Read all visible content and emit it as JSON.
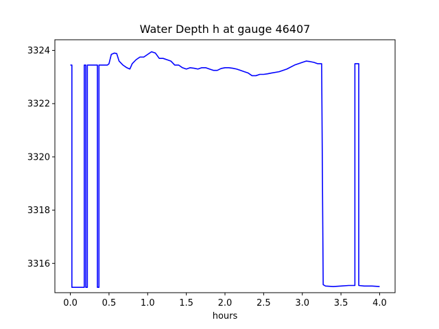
{
  "chart_data": {
    "type": "line",
    "title": "Water Depth h at gauge 46407",
    "xlabel": "hours",
    "ylabel": "",
    "xlim": [
      -0.2,
      4.2
    ],
    "ylim": [
      3314.9,
      3324.4
    ],
    "xticks": [
      0.0,
      0.5,
      1.0,
      1.5,
      2.0,
      2.5,
      3.0,
      3.5,
      4.0
    ],
    "xtick_labels": [
      "0.0",
      "0.5",
      "1.0",
      "1.5",
      "2.0",
      "2.5",
      "3.0",
      "3.5",
      "4.0"
    ],
    "yticks": [
      3316,
      3318,
      3320,
      3322,
      3324
    ],
    "ytick_labels": [
      "3316",
      "3318",
      "3320",
      "3322",
      "3324"
    ],
    "grid": false,
    "series": [
      {
        "color": "#0000ff",
        "x": [
          0.0,
          0.02,
          0.02,
          0.18,
          0.18,
          0.2,
          0.2,
          0.22,
          0.22,
          0.35,
          0.35,
          0.37,
          0.37,
          0.48,
          0.5,
          0.53,
          0.57,
          0.6,
          0.63,
          0.68,
          0.73,
          0.77,
          0.8,
          0.85,
          0.9,
          0.95,
          1.0,
          1.05,
          1.1,
          1.15,
          1.2,
          1.25,
          1.3,
          1.35,
          1.4,
          1.45,
          1.5,
          1.55,
          1.6,
          1.65,
          1.7,
          1.75,
          1.8,
          1.85,
          1.9,
          1.95,
          2.0,
          2.05,
          2.1,
          2.15,
          2.2,
          2.25,
          2.3,
          2.35,
          2.4,
          2.45,
          2.5,
          2.55,
          2.6,
          2.7,
          2.8,
          2.9,
          3.0,
          3.05,
          3.1,
          3.15,
          3.2,
          3.25,
          3.27,
          3.27,
          3.3,
          3.4,
          3.5,
          3.6,
          3.68,
          3.68,
          3.73,
          3.73,
          3.8,
          3.9,
          4.0
        ],
        "y": [
          3323.45,
          3323.45,
          3315.1,
          3315.1,
          3323.45,
          3323.45,
          3315.1,
          3315.1,
          3323.45,
          3323.45,
          3315.1,
          3315.1,
          3323.45,
          3323.45,
          3323.5,
          3323.85,
          3323.9,
          3323.88,
          3323.6,
          3323.45,
          3323.35,
          3323.3,
          3323.5,
          3323.65,
          3323.75,
          3323.75,
          3323.85,
          3323.95,
          3323.9,
          3323.7,
          3323.7,
          3323.65,
          3323.6,
          3323.45,
          3323.45,
          3323.35,
          3323.3,
          3323.35,
          3323.33,
          3323.3,
          3323.35,
          3323.35,
          3323.3,
          3323.25,
          3323.25,
          3323.32,
          3323.35,
          3323.35,
          3323.33,
          3323.3,
          3323.25,
          3323.2,
          3323.15,
          3323.05,
          3323.05,
          3323.1,
          3323.1,
          3323.12,
          3323.15,
          3323.2,
          3323.3,
          3323.45,
          3323.55,
          3323.6,
          3323.58,
          3323.55,
          3323.5,
          3323.5,
          3315.2,
          3315.2,
          3315.15,
          3315.13,
          3315.15,
          3315.17,
          3315.17,
          3323.5,
          3323.5,
          3315.17,
          3315.15,
          3315.15,
          3315.13
        ]
      }
    ]
  }
}
